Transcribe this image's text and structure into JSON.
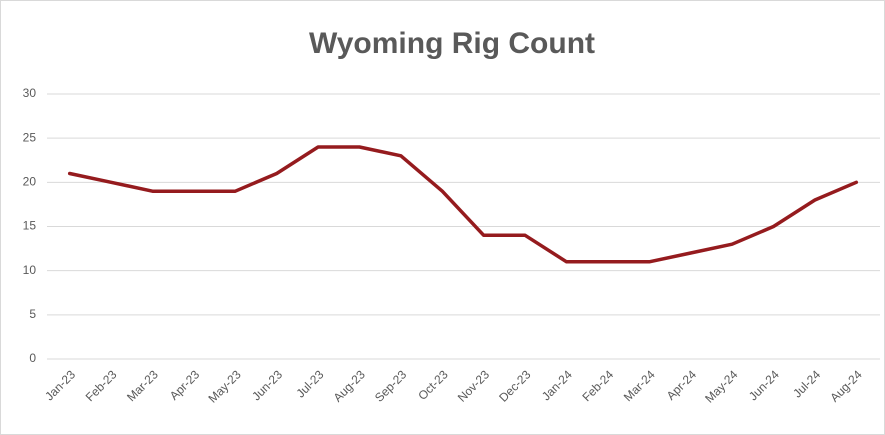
{
  "chart_data": {
    "type": "line",
    "title": "Wyoming Rig Count",
    "categories": [
      "Jan-23",
      "Feb-23",
      "Mar-23",
      "Apr-23",
      "May-23",
      "Jun-23",
      "Jul-23",
      "Aug-23",
      "Sep-23",
      "Oct-23",
      "Nov-23",
      "Dec-23",
      "Jan-24",
      "Feb-24",
      "Mar-24",
      "Apr-24",
      "May-24",
      "Jun-24",
      "Jul-24",
      "Aug-24"
    ],
    "series": [
      {
        "name": "Wyoming Rig Count",
        "color": "#951b1e",
        "values": [
          21,
          20,
          19,
          19,
          19,
          21,
          24,
          24,
          23,
          19,
          14,
          14,
          11,
          11,
          11,
          12,
          13,
          15,
          18,
          20
        ]
      }
    ],
    "ylim": [
      0,
      30
    ],
    "yticks": [
      0,
      5,
      10,
      15,
      20,
      25,
      30
    ],
    "grid": true
  }
}
